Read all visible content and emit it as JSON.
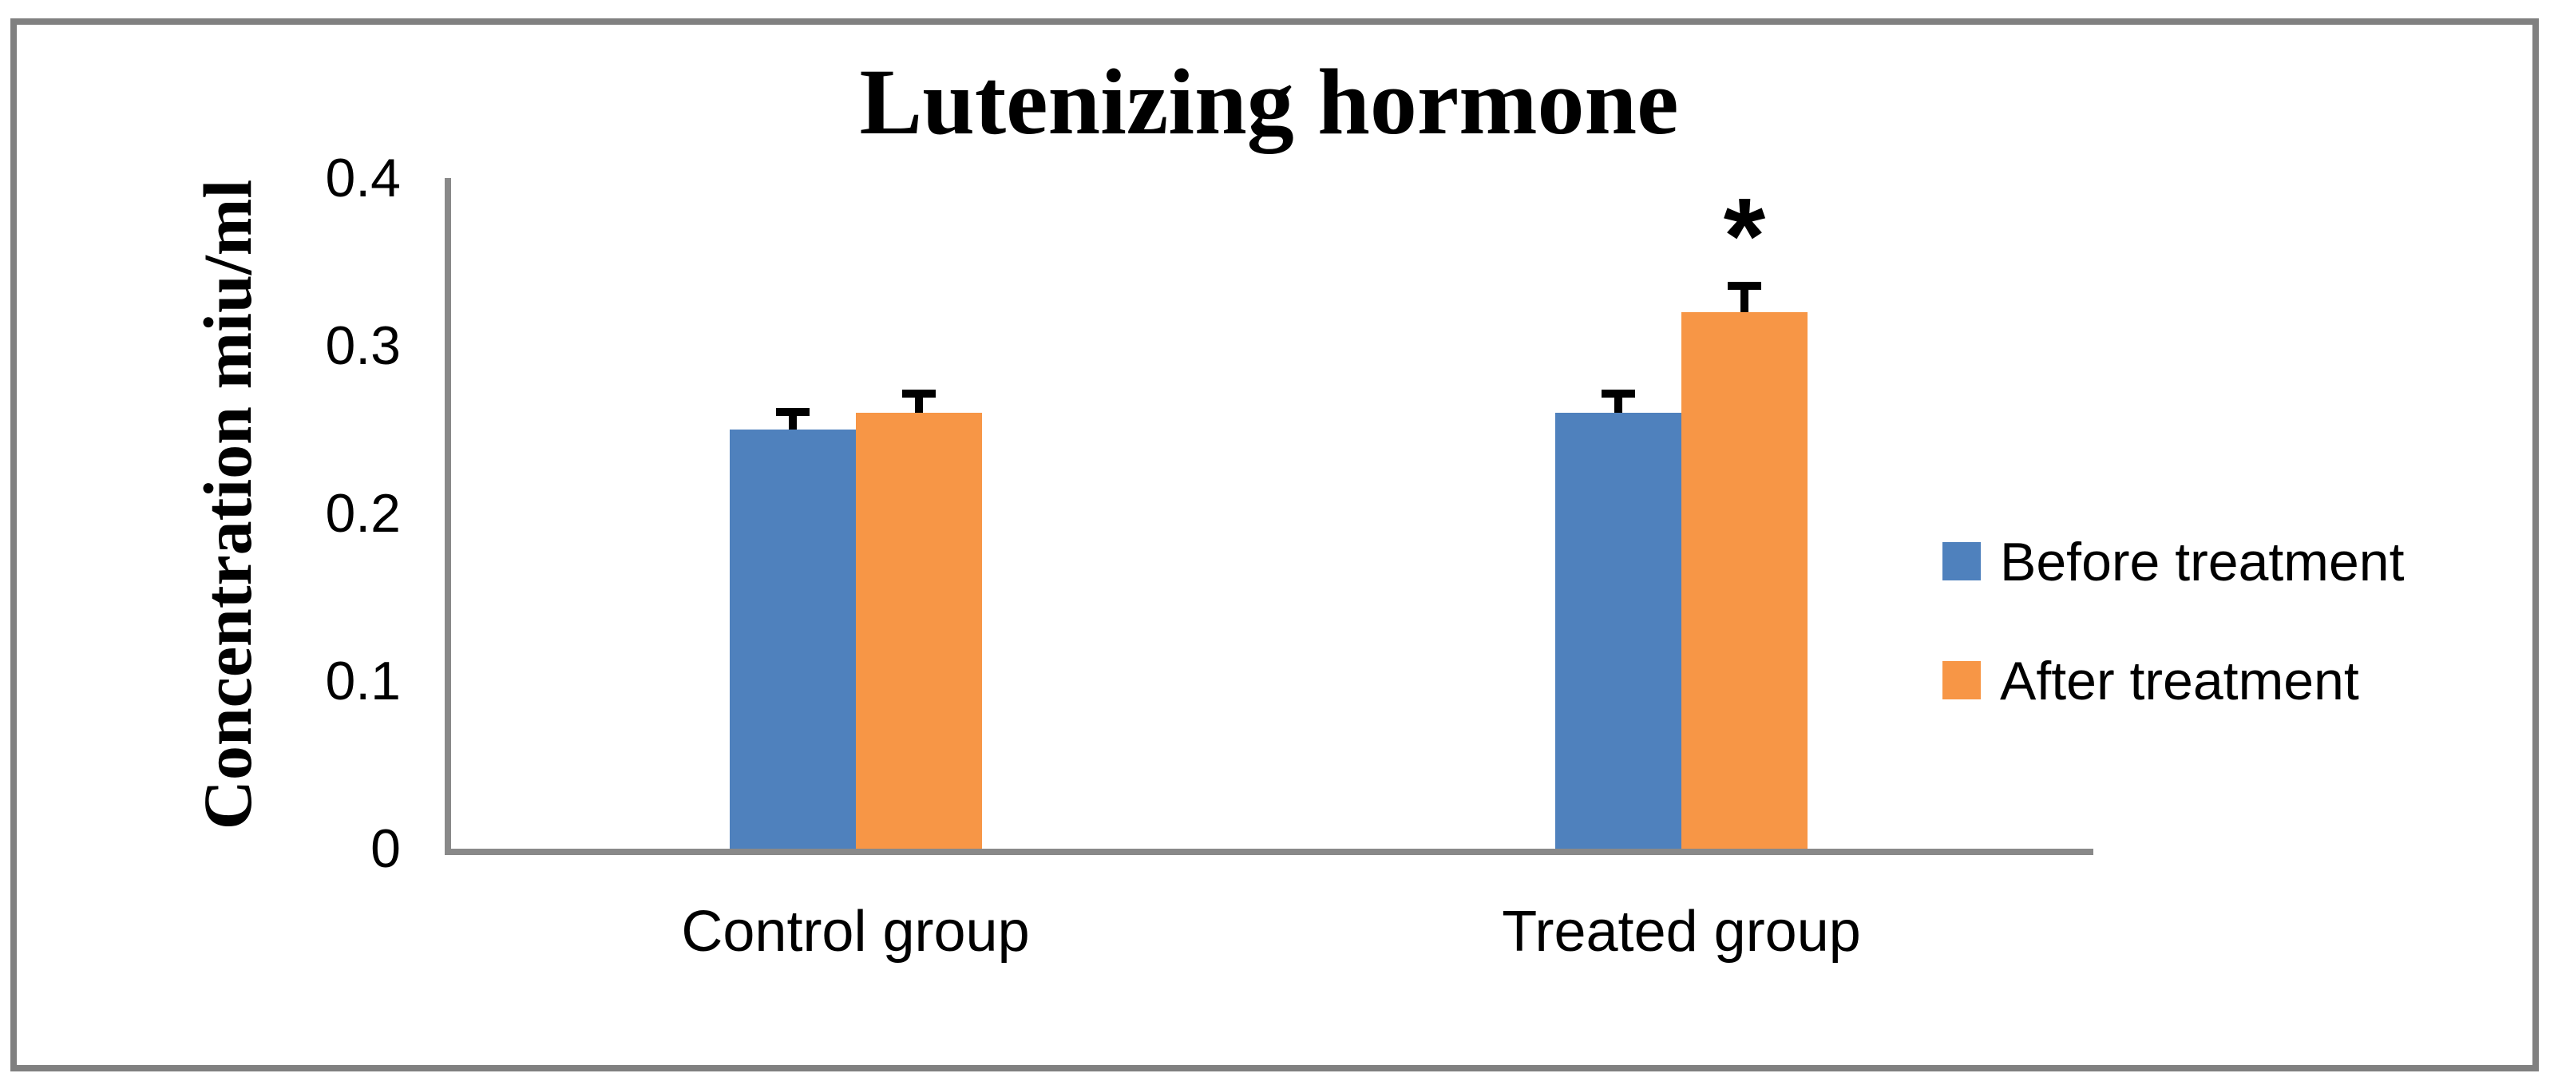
{
  "figure": {
    "border_color": "#808080",
    "background": "#ffffff"
  },
  "chart_data": {
    "type": "bar",
    "title": "Lutenizing hormone",
    "xlabel": "",
    "ylabel": "Concentration miu/ml",
    "categories": [
      "Control group",
      "Treated group"
    ],
    "series": [
      {
        "name": "Before treatment",
        "color": "#4F81BD",
        "values": [
          0.25,
          0.26
        ],
        "errors_plus": [
          0.013,
          0.014
        ]
      },
      {
        "name": "After treatment",
        "color": "#F79646",
        "values": [
          0.26,
          0.32
        ],
        "errors_plus": [
          0.014,
          0.018
        ]
      }
    ],
    "error_bars": "upper only, black caps",
    "ylim": [
      0,
      0.4
    ],
    "yticks": [
      0,
      0.1,
      0.2,
      0.3,
      0.4
    ],
    "ytick_labels": [
      "0",
      "0.1",
      "0.2",
      "0.3",
      "0.4"
    ],
    "grid": false,
    "legend_position": "right",
    "axis_color": "#898989",
    "annotations": [
      {
        "text": "*",
        "category": "Treated group",
        "series": "After treatment",
        "meaning": "significance marker"
      }
    ]
  }
}
